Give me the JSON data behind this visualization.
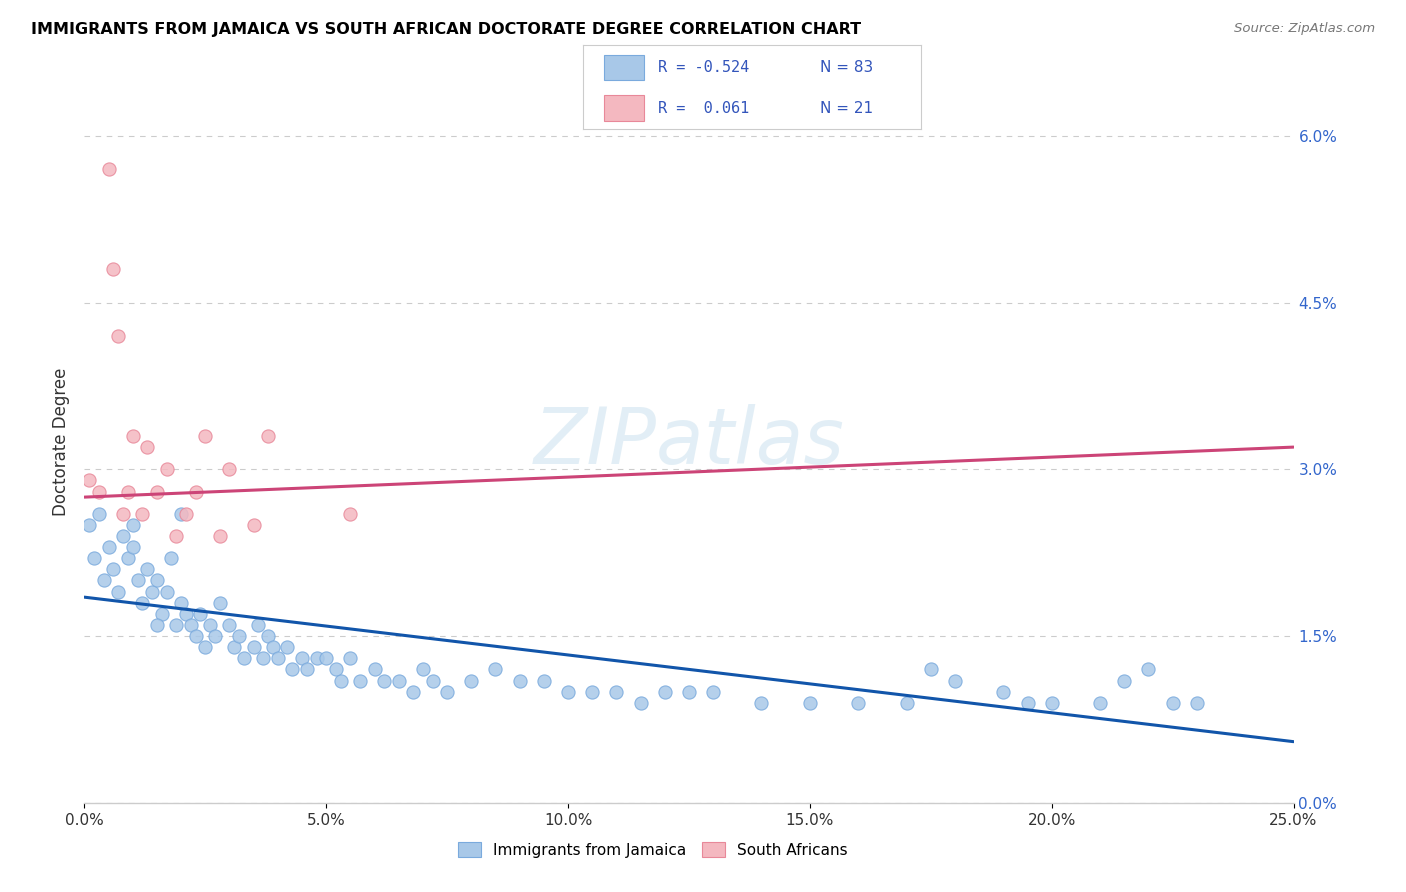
{
  "title": "IMMIGRANTS FROM JAMAICA VS SOUTH AFRICAN DOCTORATE DEGREE CORRELATION CHART",
  "source": "Source: ZipAtlas.com",
  "ylabel": "Doctorate Degree",
  "x_min": 0.0,
  "x_max": 0.25,
  "y_min": 0.0,
  "y_max": 0.065,
  "x_ticks": [
    0.0,
    0.05,
    0.1,
    0.15,
    0.2,
    0.25
  ],
  "x_tick_labels": [
    "0.0%",
    "5.0%",
    "10.0%",
    "15.0%",
    "20.0%",
    "25.0%"
  ],
  "y_ticks_right": [
    0.0,
    0.015,
    0.03,
    0.045,
    0.06
  ],
  "y_tick_labels_right": [
    "0.0%",
    "1.5%",
    "3.0%",
    "4.5%",
    "6.0%"
  ],
  "watermark": "ZIPatlas",
  "legend_label1": "Immigrants from Jamaica",
  "legend_label2": "South Africans",
  "color_blue_fill": "#a8c8e8",
  "color_blue_edge": "#7aaadd",
  "color_pink_fill": "#f4b8c0",
  "color_pink_edge": "#e88899",
  "line_color_blue": "#1155aa",
  "line_color_pink": "#cc4477",
  "blue_line_y0": 0.0185,
  "blue_line_y1": 0.0055,
  "pink_line_y0": 0.0275,
  "pink_line_y1": 0.032,
  "blue_x": [
    0.001,
    0.002,
    0.003,
    0.004,
    0.005,
    0.006,
    0.007,
    0.008,
    0.009,
    0.01,
    0.011,
    0.012,
    0.013,
    0.014,
    0.015,
    0.016,
    0.017,
    0.018,
    0.019,
    0.02,
    0.021,
    0.022,
    0.023,
    0.024,
    0.025,
    0.026,
    0.027,
    0.028,
    0.03,
    0.031,
    0.032,
    0.033,
    0.035,
    0.036,
    0.037,
    0.038,
    0.039,
    0.04,
    0.042,
    0.043,
    0.045,
    0.046,
    0.048,
    0.05,
    0.052,
    0.053,
    0.055,
    0.057,
    0.06,
    0.062,
    0.065,
    0.068,
    0.07,
    0.072,
    0.075,
    0.08,
    0.085,
    0.09,
    0.095,
    0.1,
    0.105,
    0.11,
    0.115,
    0.12,
    0.125,
    0.13,
    0.14,
    0.15,
    0.16,
    0.17,
    0.175,
    0.18,
    0.19,
    0.195,
    0.2,
    0.21,
    0.215,
    0.22,
    0.225,
    0.23,
    0.01,
    0.015,
    0.02
  ],
  "blue_y": [
    0.025,
    0.022,
    0.026,
    0.02,
    0.023,
    0.021,
    0.019,
    0.024,
    0.022,
    0.023,
    0.02,
    0.018,
    0.021,
    0.019,
    0.02,
    0.017,
    0.019,
    0.022,
    0.016,
    0.018,
    0.017,
    0.016,
    0.015,
    0.017,
    0.014,
    0.016,
    0.015,
    0.018,
    0.016,
    0.014,
    0.015,
    0.013,
    0.014,
    0.016,
    0.013,
    0.015,
    0.014,
    0.013,
    0.014,
    0.012,
    0.013,
    0.012,
    0.013,
    0.013,
    0.012,
    0.011,
    0.013,
    0.011,
    0.012,
    0.011,
    0.011,
    0.01,
    0.012,
    0.011,
    0.01,
    0.011,
    0.012,
    0.011,
    0.011,
    0.01,
    0.01,
    0.01,
    0.009,
    0.01,
    0.01,
    0.01,
    0.009,
    0.009,
    0.009,
    0.009,
    0.012,
    0.011,
    0.01,
    0.009,
    0.009,
    0.009,
    0.011,
    0.012,
    0.009,
    0.009,
    0.025,
    0.016,
    0.026
  ],
  "pink_x": [
    0.001,
    0.003,
    0.005,
    0.006,
    0.007,
    0.008,
    0.009,
    0.01,
    0.012,
    0.013,
    0.015,
    0.017,
    0.019,
    0.021,
    0.023,
    0.025,
    0.028,
    0.03,
    0.035,
    0.038,
    0.055
  ],
  "pink_y": [
    0.029,
    0.028,
    0.057,
    0.048,
    0.042,
    0.026,
    0.028,
    0.033,
    0.026,
    0.032,
    0.028,
    0.03,
    0.024,
    0.026,
    0.028,
    0.033,
    0.024,
    0.03,
    0.025,
    0.033,
    0.026
  ]
}
